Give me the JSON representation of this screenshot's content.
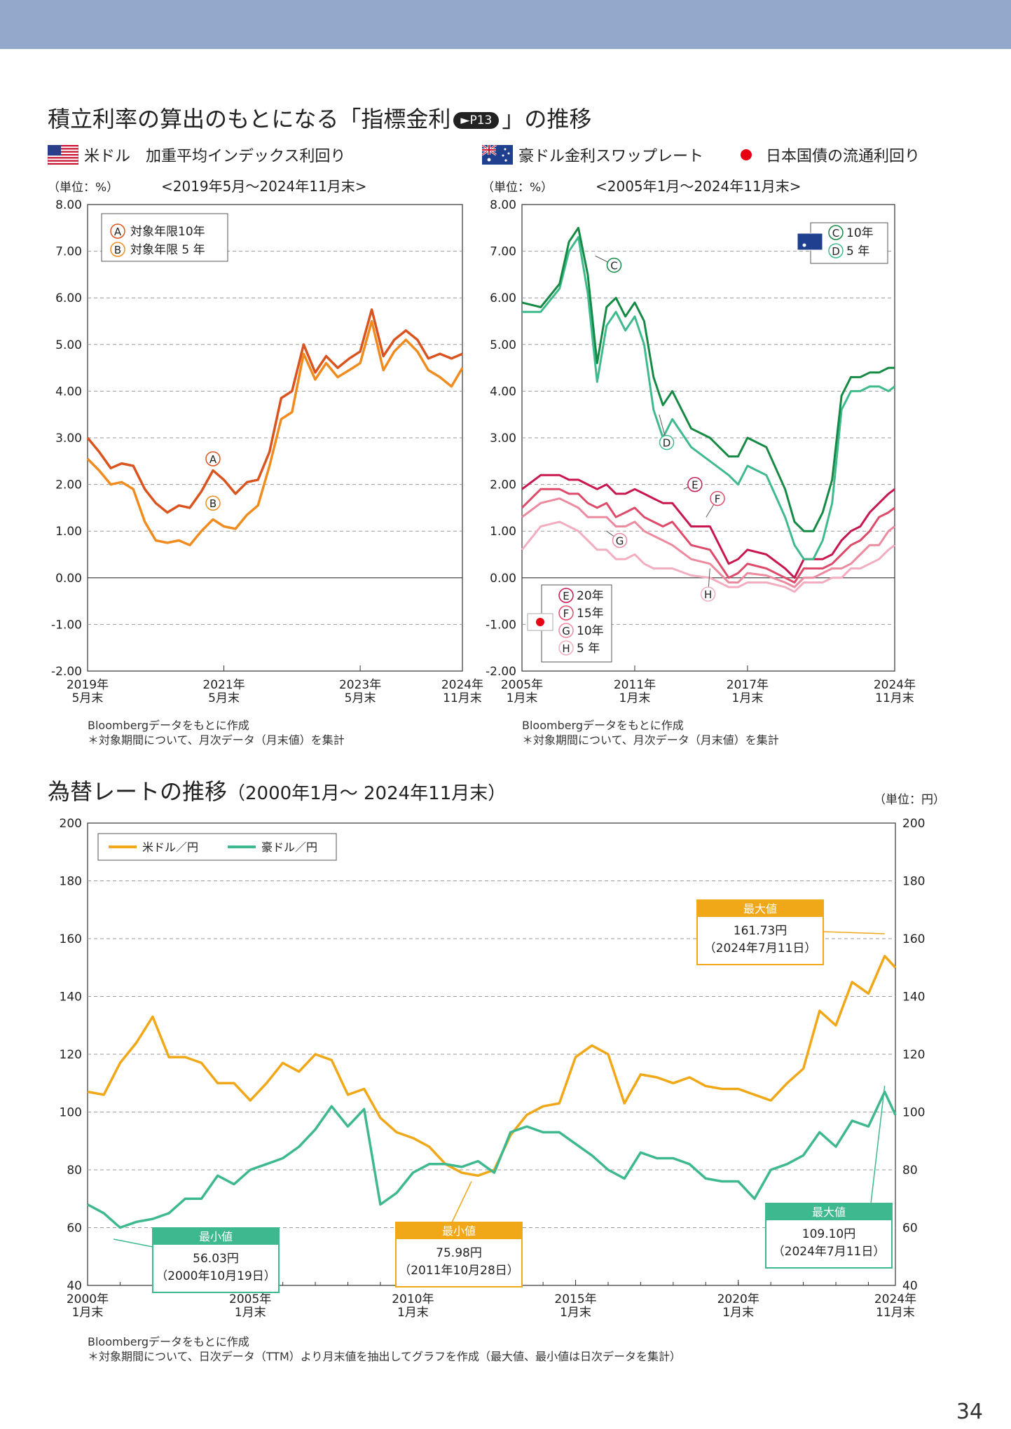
{
  "header": {
    "title_before": "積立利率の算出のもとになる「指標金利",
    "title_badge": "►P13",
    "title_after": "」の推移"
  },
  "legend_top": {
    "usd": "米ドル　加重平均インデックス利回り",
    "aud": "豪ドル金利スワップレート",
    "jgb": "日本国債の流通利回り"
  },
  "left_chart": {
    "unit": "（単位：%）",
    "period": "<2019年5月～2024年11月末>",
    "note1": "Bloombergデータをもとに作成",
    "note2": "＊対象期間について、月次データ（月末値）を集計"
  },
  "right_chart": {
    "unit": "（単位：%）",
    "period": "<2005年1月～2024年11月末>",
    "note1": "Bloombergデータをもとに作成",
    "note2": "＊対象期間について、月次データ（月末値）を集計"
  },
  "fx_chart": {
    "title": "為替レートの推移",
    "title_period": "（2000年1月～ 2024年11月末）",
    "unit": "（単位：円）",
    "note1": "Bloombergデータをもとに作成",
    "note2": "＊対象期間について、日次データ（TTM）より月末値を抽出してグラフを作成（最大値、最小値は日次データを集計）"
  },
  "page_number": "34",
  "colors": {
    "usdA": "#d9541f",
    "usdB": "#f08c1f",
    "audC": "#158a44",
    "audD": "#3fba8c",
    "jgbE": "#c8174f",
    "jgbF": "#de4a6a",
    "jgbG": "#ec8aa0",
    "jgbH": "#f2aec0",
    "fxUSD": "#f0a818",
    "fxAUD": "#3db88f",
    "header": "#93a8cb"
  },
  "chart_data": [
    {
      "type": "line",
      "title": "米ドル 加重平均インデックス利回り",
      "ylabel": "%",
      "ylim": [
        -2,
        8
      ],
      "yticks": [
        "8.00",
        "7.00",
        "6.00",
        "5.00",
        "4.00",
        "3.00",
        "2.00",
        "1.00",
        "0.00",
        "-1.00",
        "-2.00"
      ],
      "x_range": [
        2019.33,
        2024.83
      ],
      "xticks": [
        {
          "x": 2019.33,
          "l1": "2019年",
          "l2": "5月末"
        },
        {
          "x": 2021.33,
          "l1": "2021年",
          "l2": "5月末"
        },
        {
          "x": 2023.33,
          "l1": "2023年",
          "l2": "5月末"
        },
        {
          "x": 2024.83,
          "l1": "2024年",
          "l2": "11月末"
        }
      ],
      "legend": [
        {
          "mark": "A",
          "label": "対象年限10年"
        },
        {
          "mark": "B",
          "label": "対象年限 5 年"
        }
      ],
      "series": [
        {
          "name": "A",
          "label": "対象年限10年",
          "x": [
            2019.33,
            2019.5,
            2019.67,
            2019.83,
            2020.0,
            2020.17,
            2020.33,
            2020.5,
            2020.67,
            2020.83,
            2021.0,
            2021.17,
            2021.33,
            2021.5,
            2021.67,
            2021.83,
            2022.0,
            2022.17,
            2022.33,
            2022.5,
            2022.67,
            2022.83,
            2023.0,
            2023.17,
            2023.33,
            2023.5,
            2023.67,
            2023.83,
            2024.0,
            2024.17,
            2024.33,
            2024.5,
            2024.67,
            2024.83
          ],
          "values": [
            3.0,
            2.7,
            2.35,
            2.45,
            2.4,
            1.9,
            1.6,
            1.4,
            1.55,
            1.5,
            1.85,
            2.3,
            2.1,
            1.8,
            2.05,
            2.1,
            2.7,
            3.85,
            4.0,
            5.0,
            4.4,
            4.75,
            4.5,
            4.7,
            4.85,
            5.75,
            4.75,
            5.1,
            5.3,
            5.1,
            4.7,
            4.8,
            4.7,
            4.8
          ]
        },
        {
          "name": "B",
          "label": "対象年限 5 年",
          "x": [
            2019.33,
            2019.5,
            2019.67,
            2019.83,
            2020.0,
            2020.17,
            2020.33,
            2020.5,
            2020.67,
            2020.83,
            2021.0,
            2021.17,
            2021.33,
            2021.5,
            2021.67,
            2021.83,
            2022.0,
            2022.17,
            2022.33,
            2022.5,
            2022.67,
            2022.83,
            2023.0,
            2023.17,
            2023.33,
            2023.5,
            2023.67,
            2023.83,
            2024.0,
            2024.17,
            2024.33,
            2024.5,
            2024.67,
            2024.83
          ],
          "values": [
            2.55,
            2.3,
            2.0,
            2.05,
            1.9,
            1.2,
            0.8,
            0.75,
            0.8,
            0.7,
            1.0,
            1.25,
            1.1,
            1.05,
            1.35,
            1.55,
            2.4,
            3.4,
            3.55,
            4.8,
            4.25,
            4.6,
            4.3,
            4.45,
            4.6,
            5.5,
            4.45,
            4.85,
            5.1,
            4.85,
            4.45,
            4.3,
            4.1,
            4.5
          ]
        }
      ],
      "annotations": [
        "A",
        "B"
      ]
    },
    {
      "type": "line",
      "title": "豪ドル金利スワップレート / 日本国債の流通利回り",
      "ylabel": "%",
      "ylim": [
        -2,
        8
      ],
      "yticks": [
        "8.00",
        "7.00",
        "6.00",
        "5.00",
        "4.00",
        "3.00",
        "2.00",
        "1.00",
        "0.00",
        "-1.00",
        "-2.00"
      ],
      "x_range": [
        2005.0,
        2024.83
      ],
      "xticks": [
        {
          "x": 2005.0,
          "l1": "2005年",
          "l2": "1月末"
        },
        {
          "x": 2011.0,
          "l1": "2011年",
          "l2": "1月末"
        },
        {
          "x": 2017.0,
          "l1": "2017年",
          "l2": "1月末"
        },
        {
          "x": 2024.83,
          "l1": "2024年",
          "l2": "11月末"
        }
      ],
      "legend_aud": [
        {
          "mark": "C",
          "label": "10年"
        },
        {
          "mark": "D",
          "label": " 5 年"
        }
      ],
      "legend_jgb": [
        {
          "mark": "E",
          "label": "20年"
        },
        {
          "mark": "F",
          "label": "15年"
        },
        {
          "mark": "G",
          "label": "10年"
        },
        {
          "mark": "H",
          "label": " 5 年"
        }
      ],
      "x": [
        2005,
        2006,
        2007,
        2007.5,
        2008,
        2008.5,
        2009,
        2009.5,
        2010,
        2010.5,
        2011,
        2011.5,
        2012,
        2012.5,
        2013,
        2014,
        2015,
        2016,
        2016.5,
        2017,
        2018,
        2019,
        2019.5,
        2020,
        2020.5,
        2021,
        2021.5,
        2022,
        2022.5,
        2023,
        2023.5,
        2024,
        2024.5,
        2024.83
      ],
      "series": [
        {
          "name": "C",
          "label": "豪ドル 10年",
          "values": [
            5.9,
            5.8,
            6.3,
            7.2,
            7.5,
            6.5,
            4.6,
            5.8,
            6.0,
            5.6,
            5.9,
            5.5,
            4.3,
            3.7,
            4.0,
            3.2,
            3.0,
            2.6,
            2.6,
            3.0,
            2.8,
            1.9,
            1.2,
            1.0,
            1.0,
            1.4,
            2.1,
            3.9,
            4.3,
            4.3,
            4.4,
            4.4,
            4.5,
            4.5
          ]
        },
        {
          "name": "D",
          "label": "豪ドル 5年",
          "values": [
            5.7,
            5.7,
            6.2,
            7.0,
            7.3,
            6.1,
            4.2,
            5.4,
            5.7,
            5.3,
            5.6,
            5.0,
            3.6,
            3.0,
            3.4,
            2.8,
            2.5,
            2.2,
            2.0,
            2.4,
            2.2,
            1.3,
            0.7,
            0.4,
            0.4,
            0.8,
            1.6,
            3.6,
            4.0,
            4.0,
            4.1,
            4.1,
            4.0,
            4.1
          ]
        },
        {
          "name": "E",
          "label": "日本国債 20年",
          "values": [
            1.9,
            2.2,
            2.2,
            2.1,
            2.1,
            2.0,
            1.9,
            2.0,
            1.8,
            1.8,
            1.9,
            1.8,
            1.7,
            1.6,
            1.6,
            1.1,
            1.1,
            0.3,
            0.4,
            0.6,
            0.5,
            0.2,
            0.0,
            0.4,
            0.4,
            0.4,
            0.5,
            0.8,
            1.0,
            1.1,
            1.4,
            1.6,
            1.8,
            1.9
          ]
        },
        {
          "name": "F",
          "label": "日本国債 15年",
          "values": [
            1.5,
            1.9,
            1.9,
            1.8,
            1.8,
            1.6,
            1.5,
            1.6,
            1.3,
            1.4,
            1.5,
            1.3,
            1.2,
            1.1,
            1.2,
            0.7,
            0.6,
            0.0,
            0.1,
            0.3,
            0.2,
            0.0,
            -0.1,
            0.2,
            0.2,
            0.2,
            0.3,
            0.5,
            0.7,
            0.8,
            1.0,
            1.3,
            1.4,
            1.5
          ]
        },
        {
          "name": "G",
          "label": "日本国債 10年",
          "values": [
            1.3,
            1.6,
            1.7,
            1.6,
            1.5,
            1.3,
            1.3,
            1.3,
            1.1,
            1.1,
            1.2,
            1.0,
            0.9,
            0.8,
            0.7,
            0.4,
            0.3,
            -0.1,
            -0.1,
            0.1,
            0.05,
            -0.1,
            -0.2,
            0.0,
            0.0,
            0.1,
            0.2,
            0.2,
            0.3,
            0.5,
            0.7,
            0.7,
            1.0,
            1.1
          ]
        },
        {
          "name": "H",
          "label": "日本国債 5年",
          "values": [
            0.6,
            1.1,
            1.2,
            1.1,
            1.0,
            0.8,
            0.6,
            0.6,
            0.4,
            0.4,
            0.5,
            0.3,
            0.2,
            0.2,
            0.2,
            0.05,
            0.0,
            -0.2,
            -0.2,
            -0.1,
            -0.1,
            -0.2,
            -0.3,
            -0.1,
            -0.1,
            -0.1,
            0.0,
            0.0,
            0.2,
            0.2,
            0.3,
            0.4,
            0.6,
            0.7
          ]
        }
      ],
      "annotations": [
        "C",
        "D",
        "E",
        "F",
        "G",
        "H"
      ]
    },
    {
      "type": "line",
      "title": "為替レートの推移",
      "ylabel": "円",
      "ylim": [
        40,
        200
      ],
      "yticks": [
        "200",
        "180",
        "160",
        "140",
        "120",
        "100",
        "80",
        "60",
        "40"
      ],
      "x_range": [
        2000.0,
        2024.83
      ],
      "xticks": [
        {
          "x": 2000.0,
          "l1": "2000年",
          "l2": "1月末"
        },
        {
          "x": 2005.0,
          "l1": "2005年",
          "l2": "1月末"
        },
        {
          "x": 2010.0,
          "l1": "2010年",
          "l2": "1月末"
        },
        {
          "x": 2015.0,
          "l1": "2015年",
          "l2": "1月末"
        },
        {
          "x": 2020.0,
          "l1": "2020年",
          "l2": "1月末"
        },
        {
          "x": 2024.83,
          "l1": "2024年",
          "l2": "11月末"
        }
      ],
      "legend": [
        {
          "label": "米ドル／円"
        },
        {
          "label": "豪ドル／円"
        }
      ],
      "x": [
        2000,
        2000.5,
        2001,
        2001.5,
        2002,
        2002.5,
        2003,
        2003.5,
        2004,
        2004.5,
        2005,
        2005.5,
        2006,
        2006.5,
        2007,
        2007.5,
        2008,
        2008.5,
        2009,
        2009.5,
        2010,
        2010.5,
        2011,
        2011.5,
        2012,
        2012.5,
        2013,
        2013.5,
        2014,
        2014.5,
        2015,
        2015.5,
        2016,
        2016.5,
        2017,
        2017.5,
        2018,
        2018.5,
        2019,
        2019.5,
        2020,
        2020.5,
        2021,
        2021.5,
        2022,
        2022.5,
        2023,
        2023.5,
        2024,
        2024.5,
        2024.83
      ],
      "series": [
        {
          "name": "米ドル／円",
          "values": [
            107,
            106,
            117,
            124,
            133,
            119,
            119,
            117,
            110,
            110,
            104,
            110,
            117,
            114,
            120,
            118,
            106,
            108,
            98,
            93,
            91,
            88,
            82,
            79,
            78,
            80,
            92,
            99,
            102,
            103,
            119,
            123,
            120,
            103,
            113,
            112,
            110,
            112,
            109,
            108,
            108,
            106,
            104,
            110,
            115,
            135,
            130,
            145,
            141,
            154,
            150
          ]
        },
        {
          "name": "豪ドル／円",
          "values": [
            68,
            65,
            60,
            62,
            63,
            65,
            70,
            70,
            78,
            75,
            80,
            82,
            84,
            88,
            94,
            102,
            95,
            101,
            68,
            72,
            79,
            82,
            82,
            81,
            83,
            79,
            93,
            95,
            93,
            93,
            89,
            85,
            80,
            77,
            86,
            84,
            84,
            82,
            77,
            76,
            76,
            70,
            80,
            82,
            85,
            93,
            88,
            97,
            95,
            107,
            99
          ]
        }
      ],
      "annotations": [
        {
          "series": "米ドル／円",
          "tag": "最大値",
          "value": "161.73円",
          "date": "（2024年7月11日）"
        },
        {
          "series": "米ドル／円",
          "tag": "最小値",
          "value": "75.98円",
          "date": "（2011年10月28日）"
        },
        {
          "series": "豪ドル／円",
          "tag": "最大値",
          "value": "109.10円",
          "date": "（2024年7月11日）"
        },
        {
          "series": "豪ドル／円",
          "tag": "最小値",
          "value": "56.03円",
          "date": "（2000年10月19日）"
        }
      ]
    }
  ]
}
